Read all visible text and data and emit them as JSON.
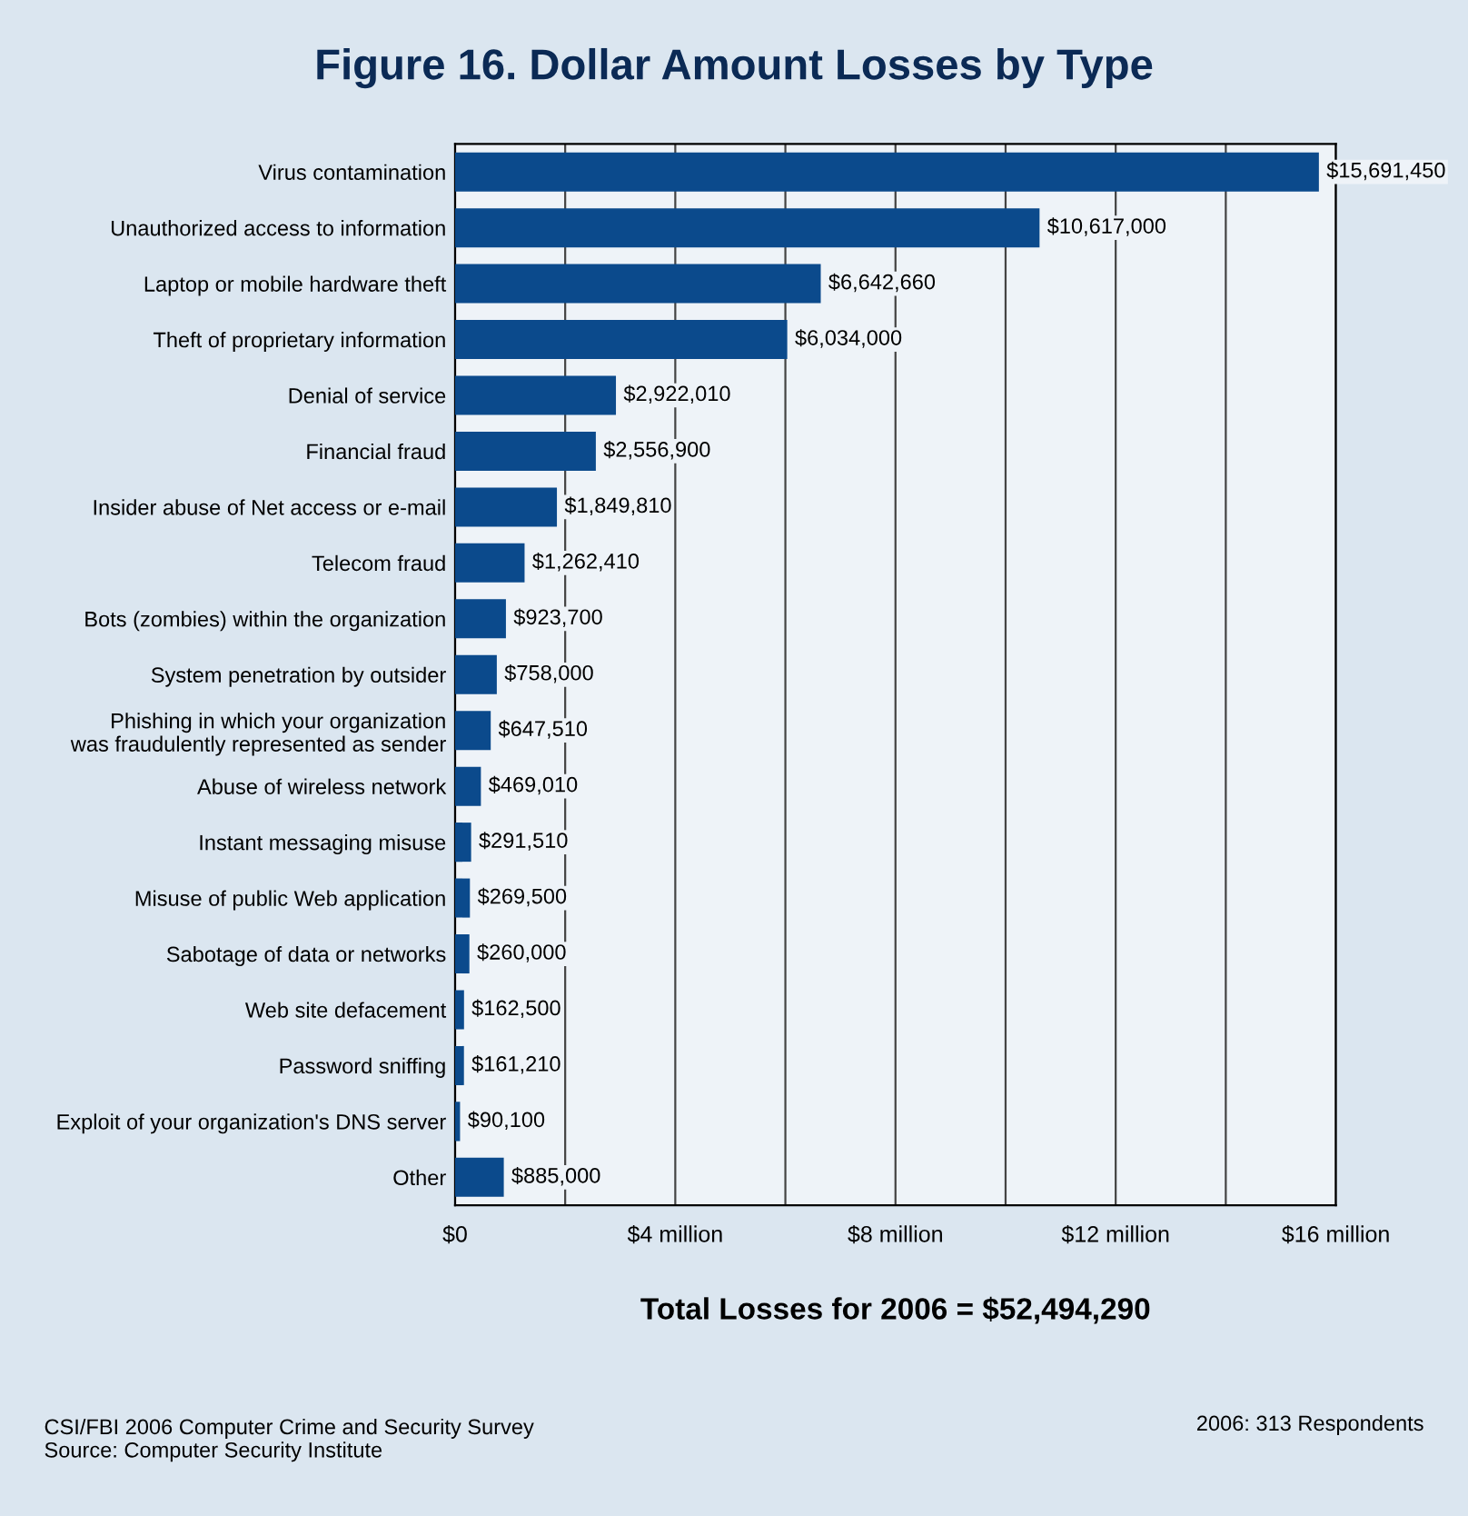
{
  "chart_data": {
    "type": "bar",
    "orientation": "horizontal",
    "title": "Figure 16. Dollar Amount Losses by Type",
    "categories": [
      "Virus contamination",
      "Unauthorized access to information",
      "Laptop or mobile hardware theft",
      "Theft of proprietary information",
      "Denial of service",
      "Financial fraud",
      "Insider abuse of Net access or e-mail",
      "Telecom fraud",
      "Bots (zombies) within the organization",
      "System penetration by outsider",
      "Phishing in which your organization\nwas fraudulently represented as sender",
      "Abuse of wireless network",
      "Instant messaging misuse",
      "Misuse of public Web application",
      "Sabotage of data or networks",
      "Web site defacement",
      "Password sniffing",
      "Exploit of your organization's DNS server",
      "Other"
    ],
    "values": [
      15691450,
      10617000,
      6642660,
      6034000,
      2922010,
      2556900,
      1849810,
      1262410,
      923700,
      758000,
      647510,
      469010,
      291510,
      269500,
      260000,
      162500,
      161210,
      90100,
      885000
    ],
    "value_labels": [
      "$15,691,450",
      "$10,617,000",
      "$6,642,660",
      "$6,034,000",
      "$2,922,010",
      "$2,556,900",
      "$1,849,810",
      "$1,262,410",
      "$923,700",
      "$758,000",
      "$647,510",
      "$469,010",
      "$291,510",
      "$269,500",
      "$260,000",
      "$162,500",
      "$161,210",
      "$90,100",
      "$885,000"
    ],
    "color": "#0b4a8c",
    "xlim": [
      0,
      16000000
    ],
    "xticks": [
      {
        "value": 0,
        "label": "$0"
      },
      {
        "value": 2000000,
        "label": null
      },
      {
        "value": 4000000,
        "label": "$4 million"
      },
      {
        "value": 6000000,
        "label": null
      },
      {
        "value": 8000000,
        "label": "$8 million"
      },
      {
        "value": 10000000,
        "label": null
      },
      {
        "value": 12000000,
        "label": "$12 million"
      },
      {
        "value": 14000000,
        "label": null
      },
      {
        "value": 16000000,
        "label": "$16 million"
      }
    ],
    "grid": "x",
    "annotations": [
      "Total Losses for 2006 = $52,494,290",
      "CSI/FBI 2006 Computer Crime and Security Survey\nSource: Computer Security Institute",
      "2006: 313 Respondents"
    ]
  }
}
